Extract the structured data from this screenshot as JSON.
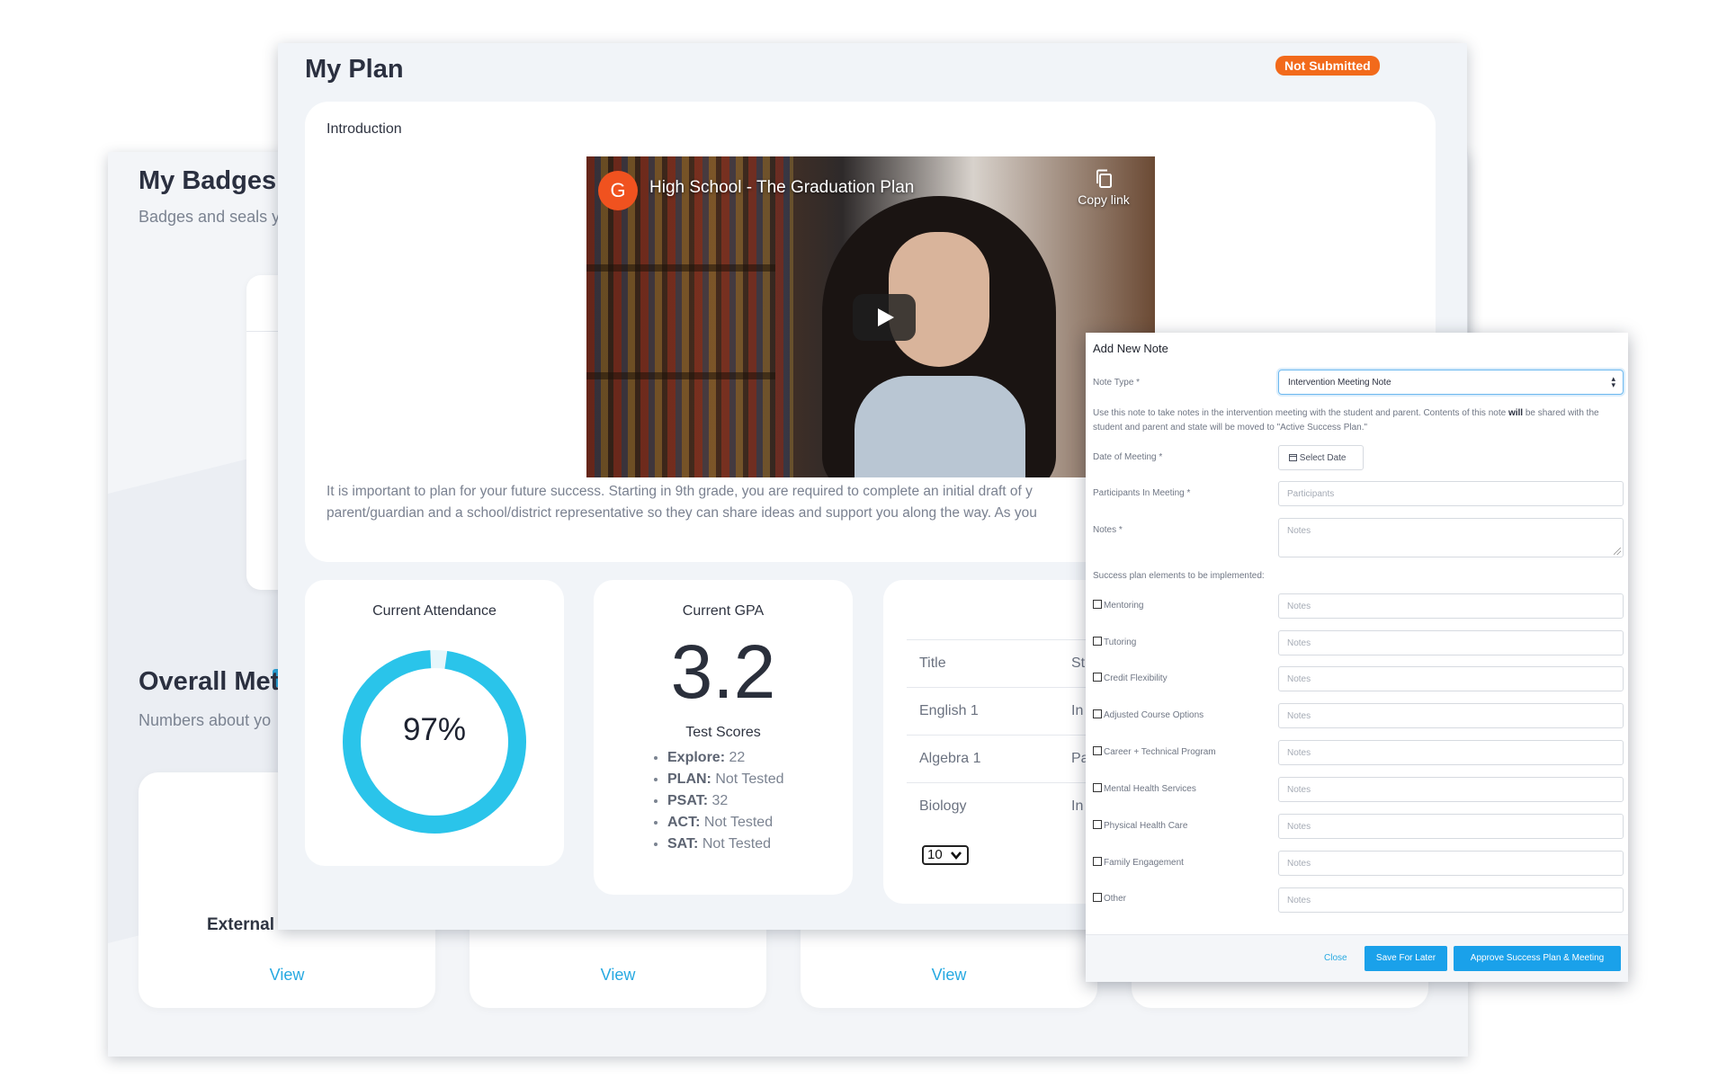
{
  "badges_panel": {
    "title": "My Badges",
    "subtitle": "Badges and seals y",
    "metrics_title": "Overall Met",
    "metrics_subtitle": "Numbers about yo",
    "cards": [
      {
        "name": "External E",
        "view_label": "View"
      },
      {
        "name": "",
        "view_label": "View"
      },
      {
        "name": "",
        "view_label": "View"
      },
      {
        "name": "",
        "view_label": ""
      }
    ]
  },
  "plan": {
    "title": "My Plan",
    "status": "Not Submitted",
    "status_color": "#f26a1b",
    "intro_label": "Introduction",
    "video": {
      "channel_initial": "G",
      "title": "High School - The Graduation Plan",
      "copy_label": "Copy link",
      "play_icon": "play-icon",
      "copy_icon": "copy-icon"
    },
    "intro_text_line1": "It is important to plan for your future success. Starting in 9th grade, you are required to complete an initial draft of y",
    "intro_text_line2": "parent/guardian and a school/district representative so they can share ideas and support you along the way. As you"
  },
  "attendance": {
    "label": "Current Attendance",
    "value_text": "97%",
    "percent": 97,
    "ring_color": "#2ac4ea"
  },
  "gpa": {
    "label": "Current GPA",
    "value": "3.2",
    "scores_title": "Test Scores",
    "scores": [
      {
        "name": "Explore:",
        "value": "22"
      },
      {
        "name": "PLAN:",
        "value": "Not Tested"
      },
      {
        "name": "PSAT:",
        "value": "32"
      },
      {
        "name": "ACT:",
        "value": "Not Tested"
      },
      {
        "name": "SAT:",
        "value": "Not Tested"
      }
    ]
  },
  "courses": {
    "header": {
      "title": "Title",
      "second": "St"
    },
    "rows": [
      {
        "title": "English 1",
        "second": "In"
      },
      {
        "title": "Algebra 1",
        "second": "Pa"
      },
      {
        "title": "Biology",
        "second": "In"
      }
    ],
    "page_size": "10"
  },
  "note_modal": {
    "title": "Add New Note",
    "note_type_label": "Note Type *",
    "note_type_value": "Intervention Meeting Note",
    "help_part1": "Use this note to take notes in the intervention meeting with the student and parent. Contents of this note ",
    "help_bold": "will",
    "help_part2": " be shared with the student and parent and state will be moved to \"Active Success Plan.\"",
    "date_label": "Date of Meeting *",
    "date_button": "Select Date",
    "participants_label": "Participants In Meeting *",
    "participants_placeholder": "Participants",
    "notes_label": "Notes *",
    "notes_placeholder": "Notes",
    "elements_label": "Success plan elements to be implemented:",
    "elements": [
      {
        "label": "Mentoring",
        "placeholder": "Notes"
      },
      {
        "label": "Tutoring",
        "placeholder": "Notes"
      },
      {
        "label": "Credit Flexibility",
        "placeholder": "Notes"
      },
      {
        "label": "Adjusted Course Options",
        "placeholder": "Notes"
      },
      {
        "label": "Career + Technical Program",
        "placeholder": "Notes"
      },
      {
        "label": "Mental Health Services",
        "placeholder": "Notes"
      },
      {
        "label": "Physical Health Care",
        "placeholder": "Notes"
      },
      {
        "label": "Family Engagement",
        "placeholder": "Notes"
      },
      {
        "label": "Other",
        "placeholder": "Notes"
      }
    ],
    "close_label": "Close",
    "save_label": "Save For Later",
    "approve_label": "Approve Success Plan & Meeting",
    "accent_color": "#1aa1ea"
  }
}
